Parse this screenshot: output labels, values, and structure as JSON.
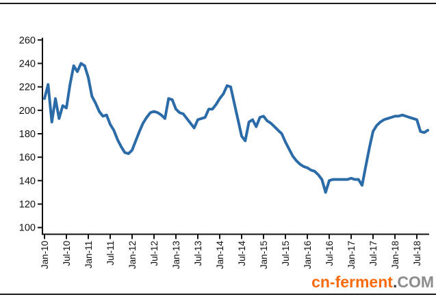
{
  "chart_data": {
    "type": "line",
    "title": "",
    "xlabel": "",
    "ylabel": "",
    "ylim": [
      100,
      260
    ],
    "y_ticks": [
      100,
      120,
      140,
      160,
      180,
      200,
      220,
      240,
      260
    ],
    "x_tick_labels": [
      "Jan-10",
      "Jul-10",
      "Jan-11",
      "Jul-11",
      "Jan-12",
      "Jul-12",
      "Jan-13",
      "Jul-13",
      "Jan-14",
      "Jul-14",
      "Jan-15",
      "Jul-15",
      "Jan-16",
      "Jul-16",
      "Jan-17",
      "Jul-17",
      "Jan-18",
      "Jul-18"
    ],
    "x_start_label": "Jan-10",
    "x_frequency": "monthly",
    "grid": false,
    "legend": "none",
    "line_color": "#2B6CA8",
    "axis_color": "#111111",
    "values": [
      210,
      222,
      190,
      210,
      193,
      204,
      202,
      222,
      238,
      233,
      240,
      238,
      228,
      212,
      206,
      199,
      195,
      196,
      188,
      183,
      175,
      169,
      164,
      163,
      166,
      174,
      182,
      189,
      194,
      198,
      199,
      198,
      196,
      193,
      210,
      209,
      201,
      198,
      197,
      193,
      189,
      185,
      192,
      193,
      194,
      201,
      201,
      205,
      210,
      214,
      221,
      220,
      206,
      192,
      178,
      174,
      190,
      192,
      186,
      194,
      195,
      191,
      189,
      186,
      183,
      180,
      173,
      167,
      161,
      157,
      154,
      152,
      151,
      149,
      148,
      145,
      141,
      130,
      140,
      141,
      141,
      141,
      141,
      141,
      142,
      141,
      141,
      136,
      152,
      168,
      182,
      187,
      190,
      192,
      193,
      194,
      195,
      195,
      196,
      195,
      194,
      193,
      192,
      182,
      181,
      183
    ]
  },
  "watermark": {
    "site": "cn-ferment",
    "dot": ".",
    "tld": "COM",
    "site_color": "#F96A0D",
    "dot_color": "#3a3a3a",
    "tld_color": "#8C8C8C"
  }
}
